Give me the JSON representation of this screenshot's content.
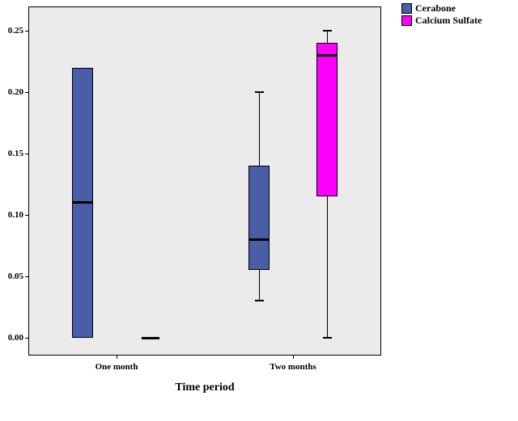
{
  "chart_data": {
    "type": "boxplot",
    "title": "",
    "xlabel": "Time period",
    "ylabel": "",
    "ylim": [
      0,
      0.25
    ],
    "yticks": [
      0.0,
      0.05,
      0.1,
      0.15,
      0.2,
      0.25
    ],
    "ytick_labels": [
      "0.00",
      "0.05",
      "0.10",
      "0.15",
      "0.20",
      "0.25"
    ],
    "categories": [
      "One month",
      "Two months"
    ],
    "series": [
      {
        "name": "Cerabone",
        "color": "#4A5EA8",
        "boxes": [
          {
            "whisker_low": 0.0,
            "q1": 0.0,
            "median": 0.11,
            "q3": 0.22,
            "whisker_high": 0.22
          },
          {
            "whisker_low": 0.03,
            "q1": 0.055,
            "median": 0.08,
            "q3": 0.14,
            "whisker_high": 0.2
          }
        ]
      },
      {
        "name": "Calcium Sulfate",
        "color": "#FF00FF",
        "boxes": [
          {
            "whisker_low": 0.0,
            "q1": 0.0,
            "median": 0.0,
            "q3": 0.0,
            "whisker_high": 0.0
          },
          {
            "whisker_low": 0.0,
            "q1": 0.115,
            "median": 0.23,
            "q3": 0.24,
            "whisker_high": 0.25
          }
        ]
      }
    ],
    "legend_position": "top-right",
    "grid": false,
    "plot_background": "#ebebeb",
    "border_color": "#000000"
  }
}
